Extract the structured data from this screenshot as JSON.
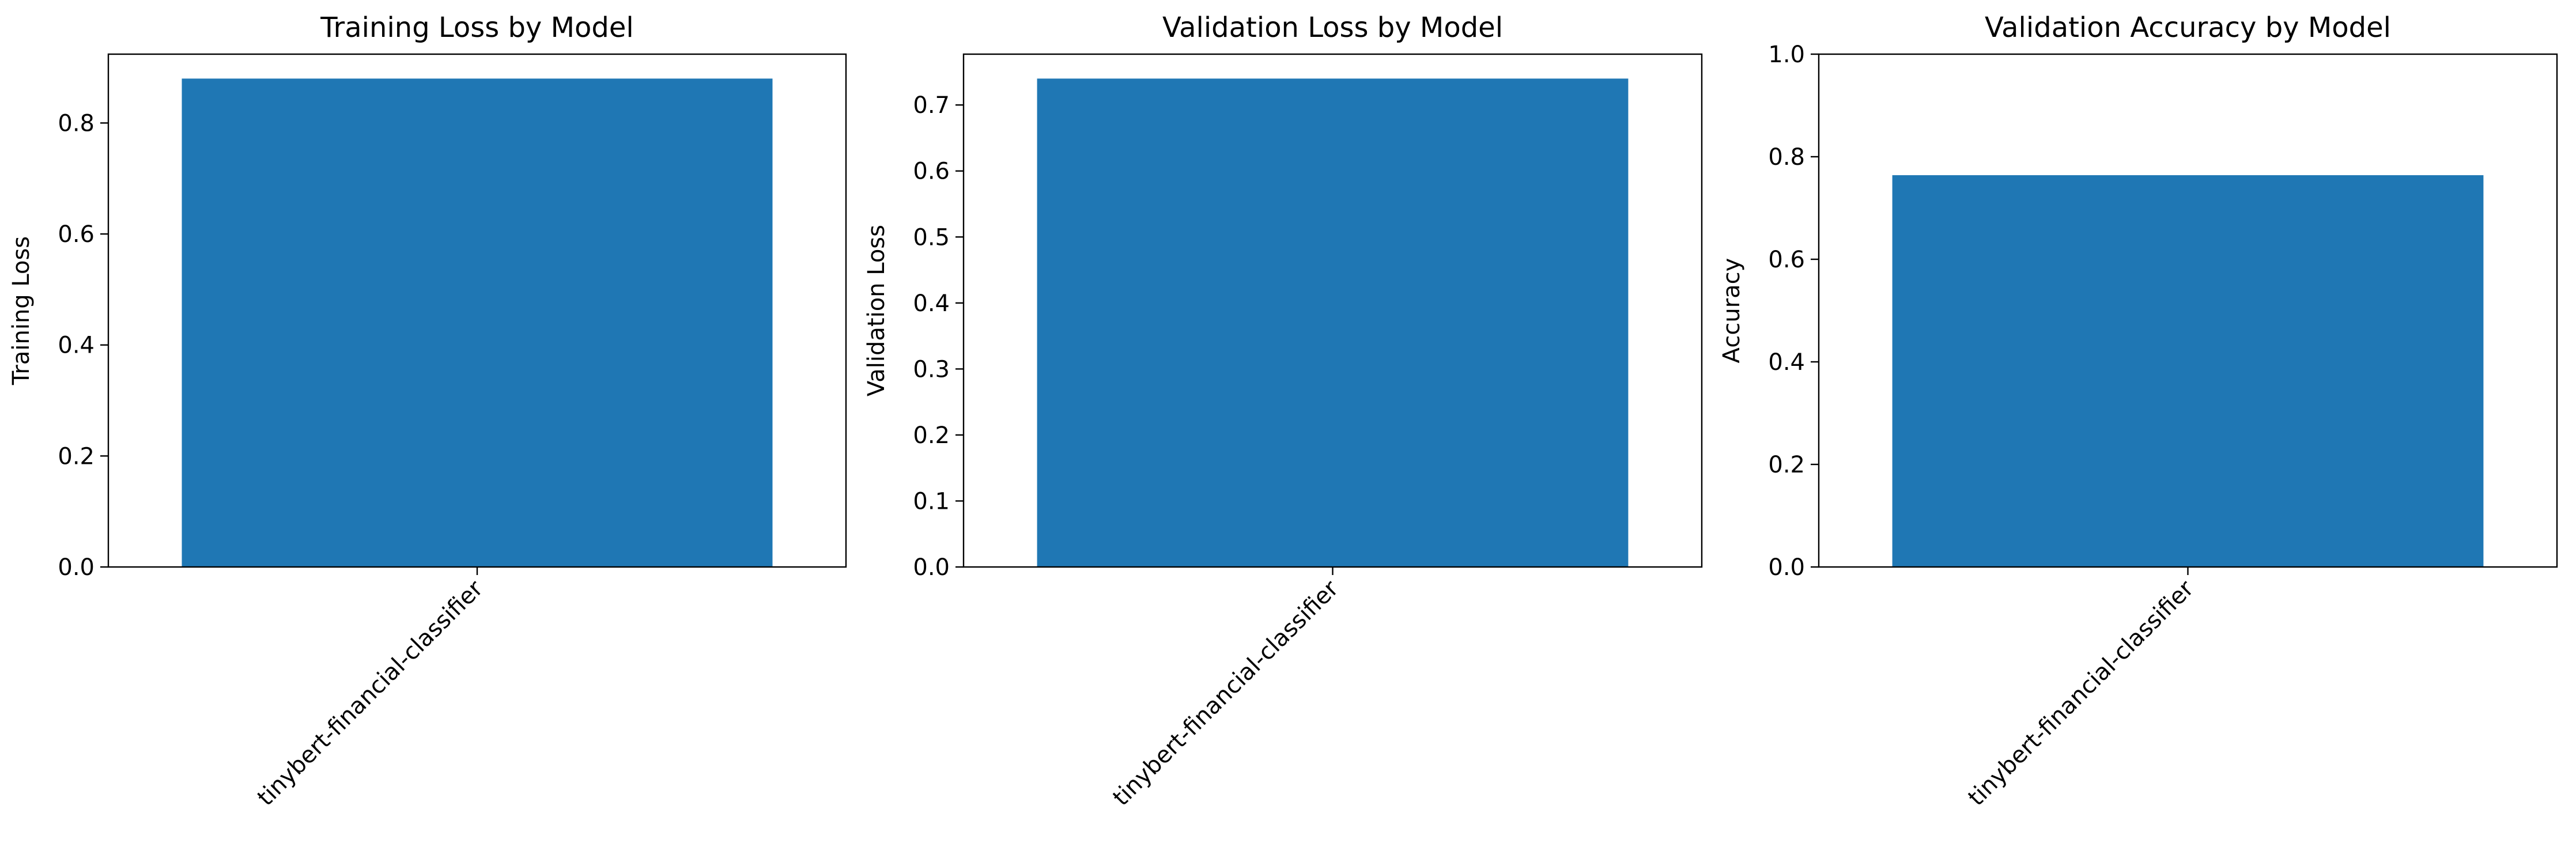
{
  "bar_color": "#1f77b4",
  "chart_data": [
    {
      "type": "bar",
      "title": "Training Loss by Model",
      "xlabel": "",
      "ylabel": "Training Loss",
      "categories": [
        "tinybert-financial-classifier"
      ],
      "values": [
        0.88
      ],
      "ylim": [
        0,
        0.924
      ],
      "yticks": [
        "0.0",
        "0.2",
        "0.4",
        "0.6",
        "0.8"
      ],
      "grid": false
    },
    {
      "type": "bar",
      "title": "Validation Loss by Model",
      "xlabel": "",
      "ylabel": "Validation Loss",
      "categories": [
        "tinybert-financial-classifier"
      ],
      "values": [
        0.74
      ],
      "ylim": [
        0,
        0.777
      ],
      "yticks": [
        "0.0",
        "0.1",
        "0.2",
        "0.3",
        "0.4",
        "0.5",
        "0.6",
        "0.7"
      ],
      "grid": false
    },
    {
      "type": "bar",
      "title": "Validation Accuracy by Model",
      "xlabel": "",
      "ylabel": "Accuracy",
      "categories": [
        "tinybert-financial-classifier"
      ],
      "values": [
        0.764
      ],
      "ylim": [
        0,
        1.0
      ],
      "yticks": [
        "0.0",
        "0.2",
        "0.4",
        "0.6",
        "0.8",
        "1.0"
      ],
      "grid": false
    }
  ]
}
